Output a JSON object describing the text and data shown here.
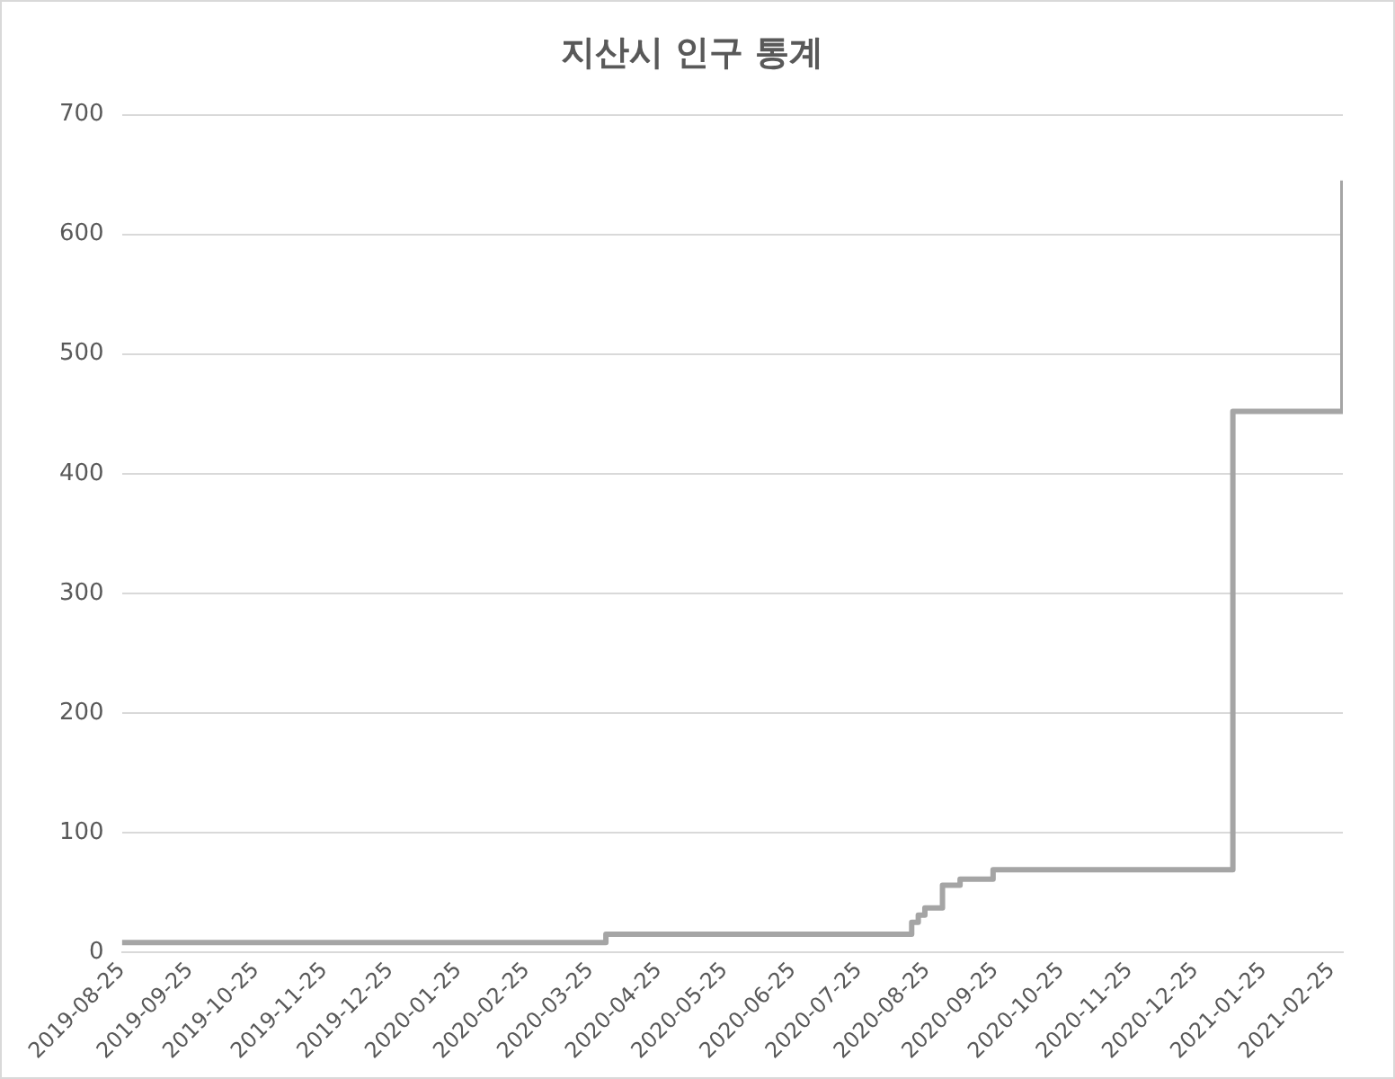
{
  "chart_data": {
    "type": "step",
    "title": "지산시 인구 통계",
    "x": [
      "2019-08-25",
      "2020-04-01",
      "2020-08-18",
      "2020-08-21",
      "2020-08-24",
      "2020-09-01",
      "2020-09-09",
      "2020-09-24",
      "2021-01-11",
      "2021-03-02"
    ],
    "series": [
      {
        "color": "#a5a5a5",
        "values": [
          8,
          15,
          25,
          31,
          37,
          56,
          61,
          69,
          452,
          645
        ]
      }
    ],
    "xlim": [
      "2019-08-25",
      "2021-03-02"
    ],
    "xticks": [
      "2019-08-25",
      "2019-09-25",
      "2019-10-25",
      "2019-11-25",
      "2019-12-25",
      "2020-01-25",
      "2020-02-25",
      "2020-03-25",
      "2020-04-25",
      "2020-05-25",
      "2020-06-25",
      "2020-07-25",
      "2020-08-25",
      "2020-09-25",
      "2020-10-25",
      "2020-11-25",
      "2020-12-25",
      "2021-01-25",
      "2021-02-25"
    ],
    "ylim": [
      0,
      700
    ],
    "yticks": [
      0,
      100,
      200,
      300,
      400,
      500,
      600,
      700
    ],
    "grid": "y",
    "legend": false,
    "marker": "none",
    "line_style": "solid"
  }
}
